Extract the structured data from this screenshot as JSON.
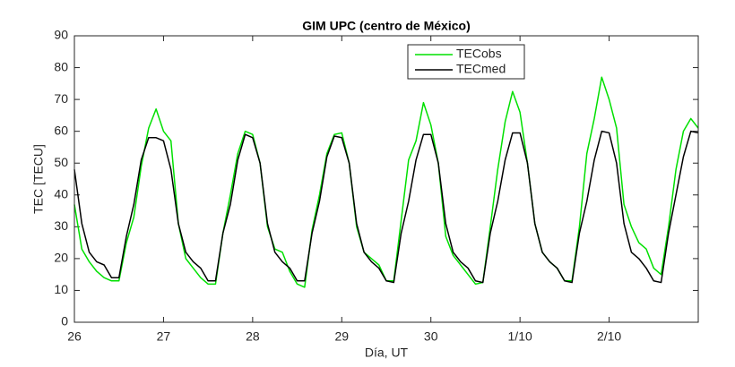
{
  "chart_data": {
    "type": "line",
    "title": "GIM UPC (centro de México)",
    "xlabel": "Día, UT",
    "ylabel": "TEC [TECU]",
    "x": [
      0,
      2,
      4,
      6,
      8,
      10,
      12,
      14,
      16,
      18,
      20,
      22,
      24,
      26,
      28,
      30,
      32,
      34,
      36,
      38,
      40,
      42,
      44,
      46,
      48,
      50,
      52,
      54,
      56,
      58,
      60,
      62,
      64,
      66,
      68,
      70,
      72,
      74,
      76,
      78,
      80,
      82,
      84,
      86,
      88,
      90,
      92,
      94,
      96,
      98,
      100,
      102,
      104,
      106,
      108,
      110,
      112,
      114,
      116,
      118,
      120,
      122,
      124,
      126,
      128,
      130,
      132,
      134,
      136,
      138,
      140,
      142,
      144,
      146,
      148,
      150,
      152,
      154,
      156,
      158,
      160,
      162,
      164,
      166,
      168
    ],
    "series": [
      {
        "name": "TECobs",
        "color": "#00e000",
        "values": [
          37,
          23,
          19,
          16,
          14,
          13,
          13,
          25,
          33,
          49,
          61,
          67,
          60,
          57,
          31,
          20,
          17,
          14,
          12,
          12,
          28,
          40,
          53,
          60,
          59,
          50,
          30,
          23,
          22,
          16,
          12,
          11,
          29,
          40,
          53,
          59,
          59.5,
          50,
          30,
          22,
          20,
          18,
          13,
          13,
          32,
          51,
          57,
          69,
          62,
          50,
          27,
          21,
          18,
          15,
          12,
          12.5,
          30,
          48,
          63,
          72.5,
          66,
          50,
          31,
          22,
          19,
          17,
          13,
          13,
          30,
          53,
          64,
          77,
          70,
          61,
          37,
          30,
          25,
          23,
          17,
          15,
          30,
          48,
          60,
          64,
          61
        ]
      },
      {
        "name": "TECmed",
        "color": "#000000",
        "values": [
          48,
          31,
          22,
          19,
          18,
          14,
          14,
          27,
          37,
          51,
          58,
          58,
          57,
          48,
          31,
          22,
          19,
          17,
          13,
          13,
          28,
          37,
          51,
          59,
          58,
          50,
          31,
          22,
          19,
          17,
          13,
          13,
          28,
          38,
          52,
          58.5,
          58,
          50,
          31,
          22,
          19,
          17,
          13,
          12.5,
          28,
          38,
          51,
          59,
          59,
          50,
          31,
          22,
          19,
          17,
          13,
          12.5,
          28,
          38,
          51,
          59.5,
          59.5,
          50,
          31,
          22,
          19,
          17,
          13,
          12.5,
          28,
          38,
          51,
          60,
          59.5,
          50,
          31,
          22,
          20,
          17,
          13,
          12.5,
          28,
          40,
          52,
          60,
          59.5
        ]
      }
    ],
    "xlim": [
      0,
      168
    ],
    "xticks": [
      {
        "value": 0,
        "label": "26"
      },
      {
        "value": 24,
        "label": "27"
      },
      {
        "value": 48,
        "label": "28"
      },
      {
        "value": 72,
        "label": "29"
      },
      {
        "value": 96,
        "label": "30"
      },
      {
        "value": 120,
        "label": "1/10"
      },
      {
        "value": 144,
        "label": "2/10"
      }
    ],
    "ylim": [
      0,
      90
    ],
    "yticks": [
      0,
      10,
      20,
      30,
      40,
      50,
      60,
      70,
      80,
      90
    ],
    "grid": false,
    "legend": "upper right"
  }
}
